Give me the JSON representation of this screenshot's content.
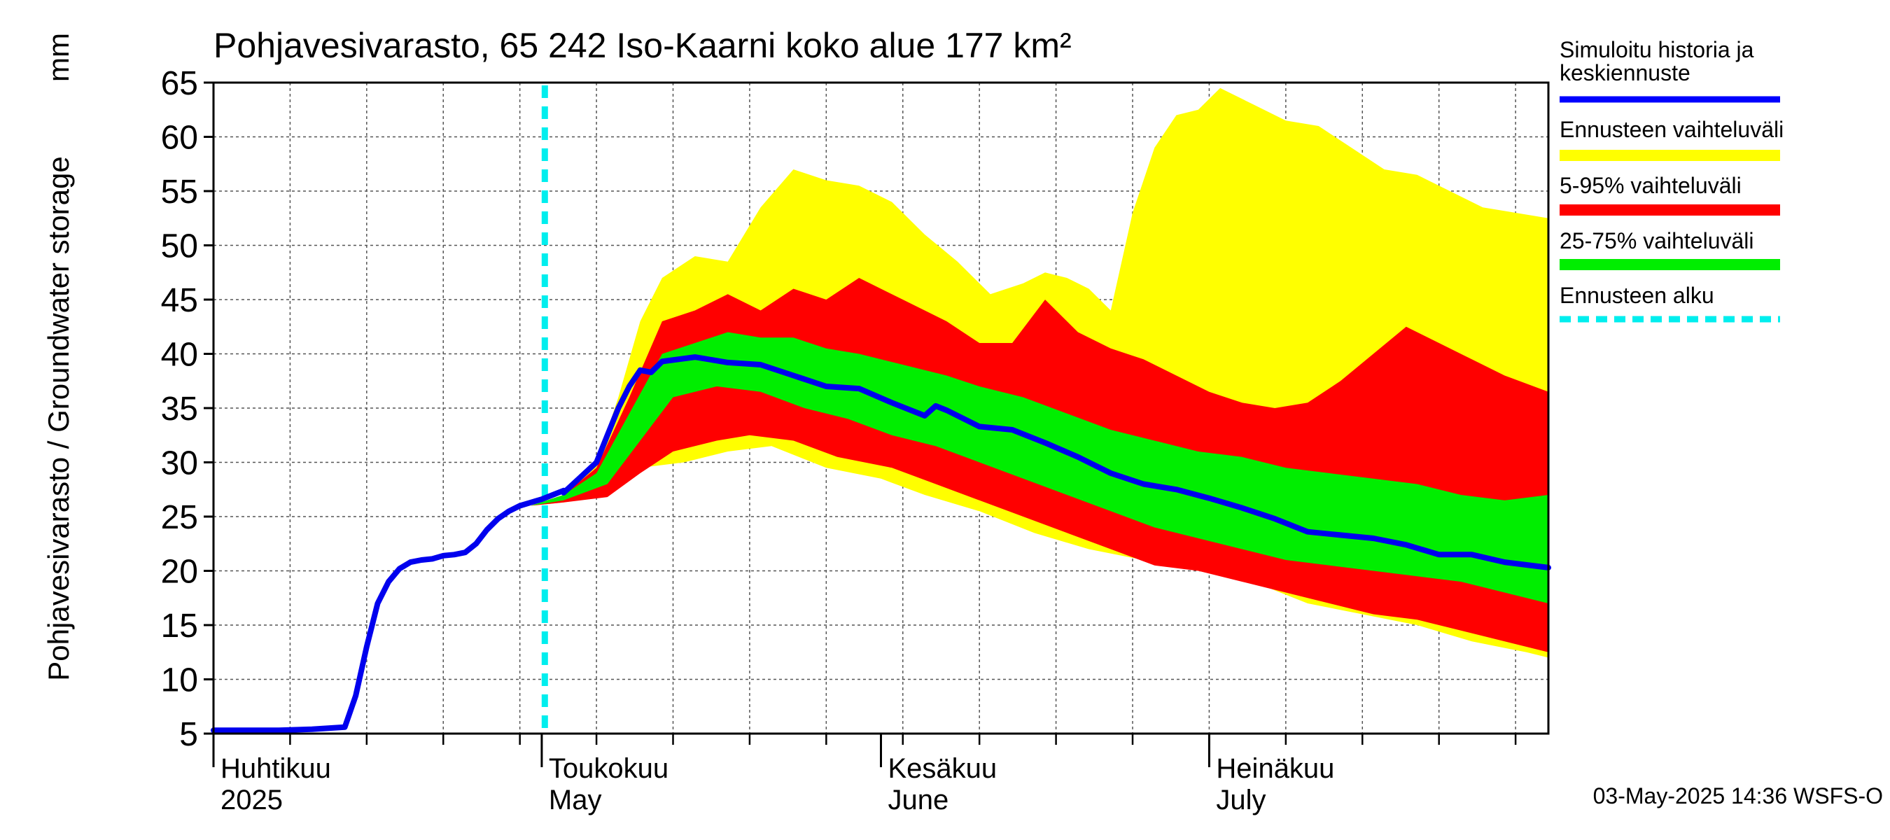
{
  "chart_data": {
    "type": "area",
    "title": "Pohjavesivarasto, 65 242 Iso-Kaarni koko alue 177 km²",
    "ylabel": "Pohjavesivarasto / Groundwater storage",
    "yunit": "mm",
    "ylim": [
      5,
      65
    ],
    "yticks": [
      5,
      10,
      15,
      20,
      25,
      30,
      35,
      40,
      45,
      50,
      55,
      60,
      65
    ],
    "xlim": [
      "2025-04-01",
      "2025-08-01"
    ],
    "grid": true,
    "month_labels": [
      {
        "date": "2025-04-01",
        "fi": "Huhtikuu",
        "en": "2025"
      },
      {
        "date": "2025-05-01",
        "fi": "Toukokuu",
        "en": "May"
      },
      {
        "date": "2025-06-01",
        "fi": "Kesäkuu",
        "en": "June"
      },
      {
        "date": "2025-07-01",
        "fi": "Heinäkuu",
        "en": "July"
      }
    ],
    "forecast_start": "2025-04-30",
    "legend": {
      "placement": "right",
      "entries": [
        {
          "key": "sim",
          "label": [
            "Simuloitu historia ja",
            "keskiennuste"
          ],
          "color": "#0000ff",
          "style": "line"
        },
        {
          "key": "range",
          "label": [
            "Ennusteen vaihteluväli"
          ],
          "color": "#ffff00",
          "style": "band"
        },
        {
          "key": "p5_95",
          "label": [
            "5-95% vaihteluväli"
          ],
          "color": "#ff0000",
          "style": "band"
        },
        {
          "key": "p25_75",
          "label": [
            "25-75% vaihteluväli"
          ],
          "color": "#00ee00",
          "style": "band"
        },
        {
          "key": "start",
          "label": [
            "Ennusteen alku"
          ],
          "color": "#00eeee",
          "style": "dashed"
        }
      ]
    },
    "series": {
      "history": {
        "name": "Simuloitu historia ja keskiennuste",
        "x": [
          "2025-04-01",
          "2025-04-04",
          "2025-04-07",
          "2025-04-10",
          "2025-04-13",
          "2025-04-14",
          "2025-04-15",
          "2025-04-16",
          "2025-04-17",
          "2025-04-18",
          "2025-04-19",
          "2025-04-20",
          "2025-04-21",
          "2025-04-22",
          "2025-04-23",
          "2025-04-24",
          "2025-04-25",
          "2025-04-26",
          "2025-04-27",
          "2025-04-28",
          "2025-04-29",
          "2025-04-30",
          "2025-05-01",
          "2025-05-02",
          "2025-05-03"
        ],
        "y": [
          5.3,
          5.3,
          5.3,
          5.4,
          5.6,
          8.5,
          13.0,
          17.0,
          19.0,
          20.2,
          20.8,
          21.0,
          21.1,
          21.4,
          21.5,
          21.7,
          22.5,
          23.8,
          24.8,
          25.5,
          26.0,
          26.3,
          26.6,
          27.0,
          27.4
        ]
      },
      "median": {
        "x": [
          "2025-05-03",
          "2025-05-06",
          "2025-05-07",
          "2025-05-08",
          "2025-05-09",
          "2025-05-10",
          "2025-05-11",
          "2025-05-12",
          "2025-05-15",
          "2025-05-18",
          "2025-05-21",
          "2025-05-24",
          "2025-05-27",
          "2025-05-30",
          "2025-06-02",
          "2025-06-05",
          "2025-06-06",
          "2025-06-07",
          "2025-06-10",
          "2025-06-13",
          "2025-06-16",
          "2025-06-19",
          "2025-06-22",
          "2025-06-25",
          "2025-06-28",
          "2025-07-01",
          "2025-07-04",
          "2025-07-07",
          "2025-07-10",
          "2025-07-13",
          "2025-07-16",
          "2025-07-19",
          "2025-07-22",
          "2025-07-25",
          "2025-07-28",
          "2025-08-01"
        ],
        "y": [
          27.2,
          30.0,
          32.5,
          35.0,
          37.0,
          38.5,
          38.3,
          39.3,
          39.7,
          39.2,
          39.0,
          38.0,
          37.0,
          36.8,
          35.5,
          34.3,
          35.2,
          34.8,
          33.3,
          33.0,
          31.8,
          30.5,
          29.0,
          28.0,
          27.5,
          26.7,
          25.8,
          24.8,
          23.6,
          23.3,
          23.0,
          22.4,
          21.5,
          21.5,
          20.8,
          20.3
        ]
      },
      "outer_upper": {
        "x": [
          "2025-04-30",
          "2025-05-03",
          "2025-05-06",
          "2025-05-08",
          "2025-05-10",
          "2025-05-12",
          "2025-05-15",
          "2025-05-18",
          "2025-05-21",
          "2025-05-24",
          "2025-05-27",
          "2025-05-30",
          "2025-06-02",
          "2025-06-05",
          "2025-06-08",
          "2025-06-11",
          "2025-06-14",
          "2025-06-16",
          "2025-06-18",
          "2025-06-20",
          "2025-06-22",
          "2025-06-24",
          "2025-06-26",
          "2025-06-28",
          "2025-06-30",
          "2025-07-02",
          "2025-07-05",
          "2025-07-08",
          "2025-07-11",
          "2025-07-14",
          "2025-07-17",
          "2025-07-20",
          "2025-07-23",
          "2025-07-26",
          "2025-07-29",
          "2025-08-01"
        ],
        "y": [
          26.0,
          27.0,
          30.0,
          36.0,
          43.0,
          47.0,
          49.0,
          48.5,
          53.5,
          57.0,
          56.0,
          55.5,
          54.0,
          51.0,
          48.5,
          45.5,
          46.5,
          47.5,
          47.0,
          46.0,
          44.0,
          53.0,
          59.0,
          62.0,
          62.5,
          64.5,
          63.0,
          61.5,
          61.0,
          59.0,
          57.0,
          56.5,
          55.0,
          53.5,
          53.0,
          52.5
        ]
      },
      "outer_lower": {
        "x": [
          "2025-04-30",
          "2025-05-03",
          "2025-05-06",
          "2025-05-10",
          "2025-05-14",
          "2025-05-18",
          "2025-05-22",
          "2025-05-27",
          "2025-06-01",
          "2025-06-05",
          "2025-06-10",
          "2025-06-15",
          "2025-06-20",
          "2025-06-25",
          "2025-06-30",
          "2025-07-05",
          "2025-07-10",
          "2025-07-15",
          "2025-07-20",
          "2025-07-25",
          "2025-07-30",
          "2025-08-01"
        ],
        "y": [
          26.0,
          26.3,
          26.8,
          29.5,
          30.0,
          31.0,
          31.5,
          29.5,
          28.5,
          27.0,
          25.5,
          23.5,
          22.0,
          21.0,
          20.0,
          19.0,
          17.0,
          16.0,
          15.0,
          13.5,
          12.5,
          12.0
        ]
      },
      "p5_95_upper": {
        "x": [
          "2025-04-30",
          "2025-05-03",
          "2025-05-06",
          "2025-05-09",
          "2025-05-12",
          "2025-05-15",
          "2025-05-18",
          "2025-05-21",
          "2025-05-24",
          "2025-05-27",
          "2025-05-30",
          "2025-06-03",
          "2025-06-07",
          "2025-06-10",
          "2025-06-13",
          "2025-06-16",
          "2025-06-19",
          "2025-06-22",
          "2025-06-25",
          "2025-06-28",
          "2025-07-01",
          "2025-07-04",
          "2025-07-07",
          "2025-07-10",
          "2025-07-13",
          "2025-07-16",
          "2025-07-19",
          "2025-07-22",
          "2025-07-25",
          "2025-07-28",
          "2025-08-01"
        ],
        "y": [
          26.0,
          27.0,
          29.5,
          36.0,
          43.0,
          44.0,
          45.5,
          44.0,
          46.0,
          45.0,
          47.0,
          45.0,
          43.0,
          41.0,
          41.0,
          45.0,
          42.0,
          40.5,
          39.5,
          38.0,
          36.5,
          35.5,
          35.0,
          35.5,
          37.5,
          40.0,
          42.5,
          41.0,
          39.5,
          38.0,
          36.5
        ]
      },
      "p5_95_lower": {
        "x": [
          "2025-04-30",
          "2025-05-03",
          "2025-05-07",
          "2025-05-10",
          "2025-05-13",
          "2025-05-17",
          "2025-05-20",
          "2025-05-24",
          "2025-05-28",
          "2025-06-02",
          "2025-06-06",
          "2025-06-10",
          "2025-06-14",
          "2025-06-18",
          "2025-06-22",
          "2025-06-26",
          "2025-06-30",
          "2025-07-04",
          "2025-07-08",
          "2025-07-12",
          "2025-07-16",
          "2025-07-20",
          "2025-07-24",
          "2025-07-28",
          "2025-08-01"
        ],
        "y": [
          26.0,
          26.3,
          26.8,
          29.0,
          31.0,
          32.0,
          32.5,
          32.0,
          30.5,
          29.5,
          28.0,
          26.5,
          25.0,
          23.5,
          22.0,
          20.5,
          20.0,
          19.0,
          18.0,
          17.0,
          16.0,
          15.5,
          14.5,
          13.5,
          12.5
        ]
      },
      "p25_75_upper": {
        "x": [
          "2025-04-30",
          "2025-05-03",
          "2025-05-06",
          "2025-05-09",
          "2025-05-12",
          "2025-05-15",
          "2025-05-18",
          "2025-05-21",
          "2025-05-24",
          "2025-05-27",
          "2025-05-30",
          "2025-06-03",
          "2025-06-07",
          "2025-06-10",
          "2025-06-14",
          "2025-06-18",
          "2025-06-22",
          "2025-06-26",
          "2025-06-30",
          "2025-07-04",
          "2025-07-08",
          "2025-07-12",
          "2025-07-16",
          "2025-07-20",
          "2025-07-24",
          "2025-07-28",
          "2025-08-01"
        ],
        "y": [
          26.0,
          27.0,
          29.0,
          34.5,
          40.0,
          41.0,
          42.0,
          41.5,
          41.5,
          40.5,
          40.0,
          39.0,
          38.0,
          37.0,
          36.0,
          34.5,
          33.0,
          32.0,
          31.0,
          30.5,
          29.5,
          29.0,
          28.5,
          28.0,
          27.0,
          26.5,
          27.0
        ]
      },
      "p25_75_lower": {
        "x": [
          "2025-04-30",
          "2025-05-03",
          "2025-05-07",
          "2025-05-10",
          "2025-05-13",
          "2025-05-17",
          "2025-05-21",
          "2025-05-25",
          "2025-05-29",
          "2025-06-02",
          "2025-06-06",
          "2025-06-10",
          "2025-06-14",
          "2025-06-18",
          "2025-06-22",
          "2025-06-26",
          "2025-06-30",
          "2025-07-04",
          "2025-07-08",
          "2025-07-12",
          "2025-07-16",
          "2025-07-20",
          "2025-07-24",
          "2025-07-28",
          "2025-08-01"
        ],
        "y": [
          26.0,
          26.5,
          28.0,
          32.0,
          36.0,
          37.0,
          36.5,
          35.0,
          34.0,
          32.5,
          31.5,
          30.0,
          28.5,
          27.0,
          25.5,
          24.0,
          23.0,
          22.0,
          21.0,
          20.5,
          20.0,
          19.5,
          19.0,
          18.0,
          17.0
        ]
      }
    },
    "footer": "03-May-2025 14:36 WSFS-O"
  }
}
